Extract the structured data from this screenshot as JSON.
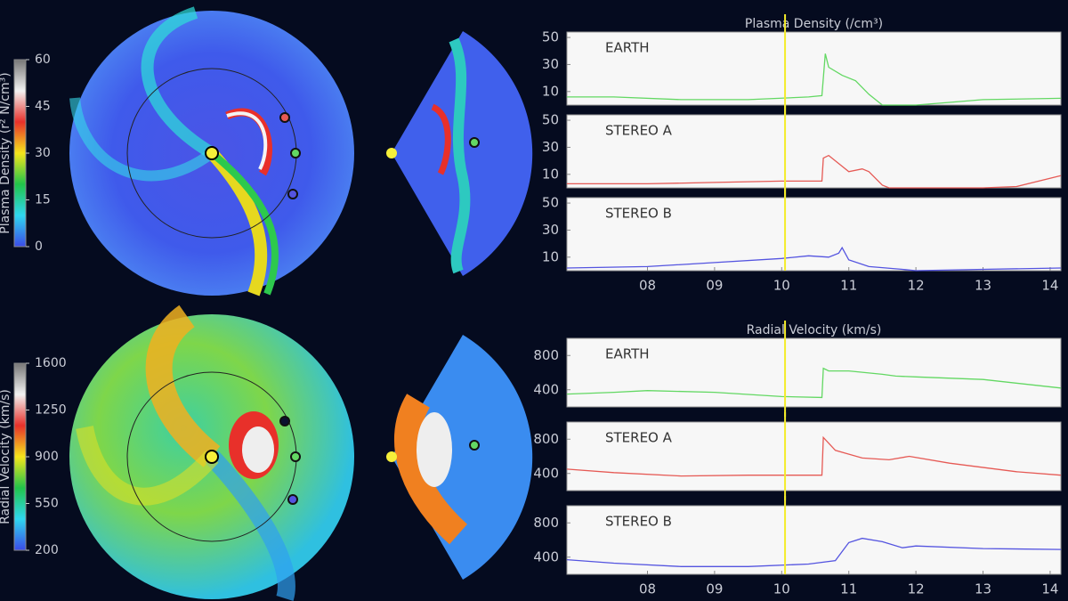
{
  "chart_data": [
    {
      "type": "colorbar",
      "label": "Plasma Density (r² N/cm³)",
      "ylim": [
        0,
        60
      ],
      "yticks": [
        0,
        15,
        30,
        45,
        60
      ],
      "colors": [
        "#3b4be8",
        "#2fd7f0",
        "#21c44a",
        "#f5e51b",
        "#e8302a",
        "#f2f2f2",
        "#777777"
      ]
    },
    {
      "type": "colorbar",
      "label": "Radial Velocity (km/s)",
      "ylim": [
        200,
        1600
      ],
      "yticks": [
        200,
        550,
        900,
        1250,
        1600
      ],
      "colors": [
        "#3b4be8",
        "#2fd7f0",
        "#21c44a",
        "#f5e51b",
        "#e8302a",
        "#f2f2f2",
        "#777777"
      ]
    },
    {
      "type": "line",
      "title": "Plasma Density (/cm³)",
      "xlim": [
        6.8,
        14.16
      ],
      "ylim": [
        0,
        54
      ],
      "yticks": [
        10,
        30,
        50
      ],
      "marker_x": 10.05,
      "x": [
        6.8,
        7.5,
        8.5,
        9.5,
        10.4,
        10.6,
        10.65,
        10.7,
        10.9,
        11.1,
        11.3,
        11.5,
        12.0,
        12.5,
        13.0,
        14.16
      ],
      "series": [
        {
          "name": "EARTH",
          "color": "#63d863",
          "values": [
            6,
            6,
            4,
            4,
            6,
            7,
            38,
            28,
            22,
            18,
            8,
            0,
            0,
            2,
            4,
            5
          ]
        }
      ]
    },
    {
      "type": "line",
      "xlim": [
        6.8,
        14.16
      ],
      "ylim": [
        0,
        54
      ],
      "yticks": [
        10,
        30,
        50
      ],
      "marker_x": 10.05,
      "x": [
        6.8,
        8.0,
        9.0,
        10.0,
        10.6,
        10.62,
        10.7,
        10.9,
        11.0,
        11.2,
        11.3,
        11.5,
        11.6,
        12.0,
        12.5,
        13.0,
        13.5,
        14.16
      ],
      "series": [
        {
          "name": "STEREO A",
          "color": "#e65a55",
          "values": [
            3,
            3,
            4,
            5,
            5,
            22,
            24,
            16,
            12,
            14,
            12,
            2,
            0,
            0,
            0,
            0,
            1,
            9
          ]
        }
      ]
    },
    {
      "type": "line",
      "xlim": [
        6.8,
        14.16
      ],
      "ylim": [
        0,
        54
      ],
      "yticks": [
        10,
        30,
        50
      ],
      "marker_x": 10.05,
      "xticks": [
        {
          "value": 8,
          "label": "08"
        },
        {
          "value": 9,
          "label": "09"
        },
        10,
        11,
        12,
        13,
        14
      ],
      "x": [
        6.8,
        8.0,
        9.0,
        10.0,
        10.4,
        10.7,
        10.85,
        10.9,
        11.0,
        11.3,
        11.8,
        12.0,
        13.0,
        14.16
      ],
      "series": [
        {
          "name": "STEREO B",
          "color": "#5454e0",
          "values": [
            2,
            3,
            6,
            9,
            11,
            10,
            13,
            17,
            8,
            3,
            1,
            0,
            1,
            2
          ]
        }
      ]
    },
    {
      "type": "line",
      "title": "Radial Velocity (km/s)",
      "xlim": [
        6.8,
        14.16
      ],
      "ylim": [
        200,
        1000
      ],
      "yticks": [
        400,
        800
      ],
      "marker_x": 10.05,
      "x": [
        6.8,
        7.5,
        8.0,
        9.0,
        10.0,
        10.6,
        10.62,
        10.7,
        11.0,
        11.5,
        11.7,
        12.0,
        13.0,
        14.16
      ],
      "series": [
        {
          "name": "EARTH",
          "color": "#63d863",
          "values": [
            350,
            370,
            390,
            370,
            320,
            310,
            650,
            620,
            620,
            580,
            560,
            550,
            520,
            420
          ]
        }
      ]
    },
    {
      "type": "line",
      "xlim": [
        6.8,
        14.16
      ],
      "ylim": [
        200,
        1000
      ],
      "yticks": [
        400,
        800
      ],
      "marker_x": 10.05,
      "x": [
        6.8,
        7.5,
        8.5,
        9.5,
        10.6,
        10.62,
        10.8,
        11.2,
        11.6,
        11.9,
        12.5,
        13.5,
        14.16
      ],
      "series": [
        {
          "name": "STEREO A",
          "color": "#e65a55",
          "values": [
            450,
            410,
            370,
            380,
            380,
            820,
            670,
            580,
            560,
            600,
            520,
            420,
            380
          ]
        }
      ]
    },
    {
      "type": "line",
      "xlim": [
        6.8,
        14.16
      ],
      "ylim": [
        200,
        1000
      ],
      "yticks": [
        400,
        800
      ],
      "marker_x": 10.05,
      "xticks": [
        {
          "value": 8,
          "label": "08"
        },
        {
          "value": 9,
          "label": "09"
        },
        10,
        11,
        12,
        13,
        14
      ],
      "x": [
        6.8,
        7.5,
        8.5,
        9.5,
        10.4,
        10.8,
        11.0,
        11.2,
        11.5,
        11.8,
        12.0,
        13.0,
        14.16
      ],
      "series": [
        {
          "name": "STEREO B",
          "color": "#5454e0",
          "values": [
            370,
            330,
            290,
            290,
            320,
            360,
            570,
            620,
            580,
            510,
            530,
            500,
            490
          ]
        }
      ]
    }
  ]
}
